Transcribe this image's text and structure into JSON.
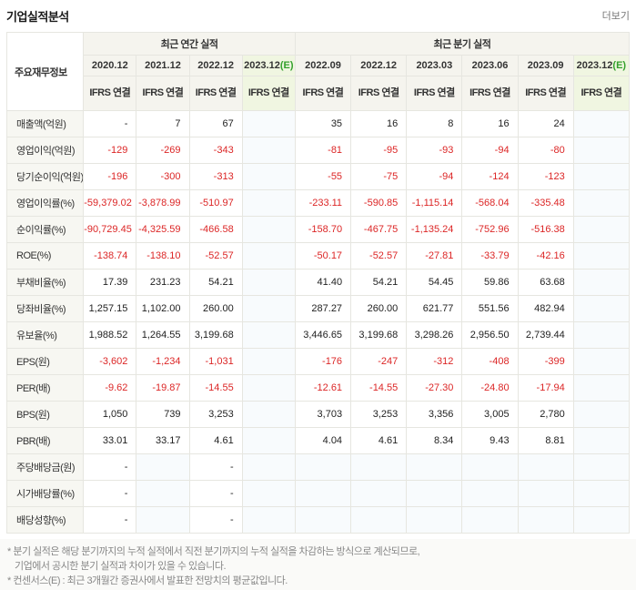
{
  "colors": {
    "negative": "#dc2626",
    "positive": "#222222",
    "ifrs_orange": "#e06c1f",
    "estimate_green": "#33a02c",
    "header_bg": "#f5f4ee",
    "estimate_bg": "#f0f6e1",
    "label_bg": "#f7f7f2"
  },
  "header": {
    "title": "기업실적분석",
    "more_label": "더보기"
  },
  "table": {
    "corner_label": "주요재무정보",
    "groups": [
      {
        "label": "최근 연간 실적",
        "span": 4
      },
      {
        "label": "최근 분기 실적",
        "span": 6
      }
    ],
    "columns": [
      {
        "label": "2020.12",
        "sub": "IFRS\n연결",
        "estimate": false
      },
      {
        "label": "2021.12",
        "sub": "IFRS\n연결",
        "estimate": false
      },
      {
        "label": "2022.12",
        "sub": "IFRS\n연결",
        "estimate": false
      },
      {
        "label": "2023.12(E)",
        "sub": "IFRS\n연결",
        "estimate": true
      },
      {
        "label": "2022.09",
        "sub": "IFRS\n연결",
        "estimate": false
      },
      {
        "label": "2022.12",
        "sub": "IFRS\n연결",
        "estimate": false
      },
      {
        "label": "2023.03",
        "sub": "IFRS\n연결",
        "estimate": false
      },
      {
        "label": "2023.06",
        "sub": "IFRS\n연결",
        "estimate": false
      },
      {
        "label": "2023.09",
        "sub": "IFRS\n연결",
        "estimate": false
      },
      {
        "label": "2023.12(E)",
        "sub": "IFRS\n연결",
        "estimate": true
      }
    ],
    "rows": [
      {
        "label": "매출액(억원)",
        "values": [
          "-",
          "7",
          "67",
          "",
          "35",
          "16",
          "8",
          "16",
          "24",
          ""
        ]
      },
      {
        "label": "영업이익(억원)",
        "values": [
          "-129",
          "-269",
          "-343",
          "",
          "-81",
          "-95",
          "-93",
          "-94",
          "-80",
          ""
        ]
      },
      {
        "label": "당기순이익(억원)",
        "values": [
          "-196",
          "-300",
          "-313",
          "",
          "-55",
          "-75",
          "-94",
          "-124",
          "-123",
          ""
        ]
      },
      {
        "label": "영업이익률(%)",
        "values": [
          "-59,379.02",
          "-3,878.99",
          "-510.97",
          "",
          "-233.11",
          "-590.85",
          "-1,115.14",
          "-568.04",
          "-335.48",
          ""
        ]
      },
      {
        "label": "순이익률(%)",
        "values": [
          "-90,729.45",
          "-4,325.59",
          "-466.58",
          "",
          "-158.70",
          "-467.75",
          "-1,135.24",
          "-752.96",
          "-516.38",
          ""
        ]
      },
      {
        "label": "ROE(%)",
        "values": [
          "-138.74",
          "-138.10",
          "-52.57",
          "",
          "-50.17",
          "-52.57",
          "-27.81",
          "-33.79",
          "-42.16",
          ""
        ]
      },
      {
        "label": "부채비율(%)",
        "values": [
          "17.39",
          "231.23",
          "54.21",
          "",
          "41.40",
          "54.21",
          "54.45",
          "59.86",
          "63.68",
          ""
        ]
      },
      {
        "label": "당좌비율(%)",
        "values": [
          "1,257.15",
          "1,102.00",
          "260.00",
          "",
          "287.27",
          "260.00",
          "621.77",
          "551.56",
          "482.94",
          ""
        ]
      },
      {
        "label": "유보율(%)",
        "values": [
          "1,988.52",
          "1,264.55",
          "3,199.68",
          "",
          "3,446.65",
          "3,199.68",
          "3,298.26",
          "2,956.50",
          "2,739.44",
          ""
        ]
      },
      {
        "label": "EPS(원)",
        "values": [
          "-3,602",
          "-1,234",
          "-1,031",
          "",
          "-176",
          "-247",
          "-312",
          "-408",
          "-399",
          ""
        ]
      },
      {
        "label": "PER(배)",
        "values": [
          "-9.62",
          "-19.87",
          "-14.55",
          "",
          "-12.61",
          "-14.55",
          "-27.30",
          "-24.80",
          "-17.94",
          ""
        ]
      },
      {
        "label": "BPS(원)",
        "values": [
          "1,050",
          "739",
          "3,253",
          "",
          "3,703",
          "3,253",
          "3,356",
          "3,005",
          "2,780",
          ""
        ]
      },
      {
        "label": "PBR(배)",
        "values": [
          "33.01",
          "33.17",
          "4.61",
          "",
          "4.04",
          "4.61",
          "8.34",
          "9.43",
          "8.81",
          ""
        ]
      },
      {
        "label": "주당배당금(원)",
        "values": [
          "-",
          "",
          "-",
          "",
          "",
          "",
          "",
          "",
          "",
          ""
        ]
      },
      {
        "label": "시가배당률(%)",
        "values": [
          "-",
          "",
          "-",
          "",
          "",
          "",
          "",
          "",
          "",
          ""
        ]
      },
      {
        "label": "배당성향(%)",
        "values": [
          "-",
          "",
          "-",
          "",
          "",
          "",
          "",
          "",
          "",
          ""
        ]
      }
    ]
  },
  "footnotes": [
    "* 분기 실적은 해당 분기까지의 누적 실적에서 직전 분기까지의 누적 실적을 차감하는 방식으로 계산되므로,",
    "기업에서 공시한 분기 실적과 차이가 있을 수 있습니다.",
    "* 컨센서스(E) : 최근 3개월간 증권사에서 발표한 전망치의 평균값입니다."
  ]
}
